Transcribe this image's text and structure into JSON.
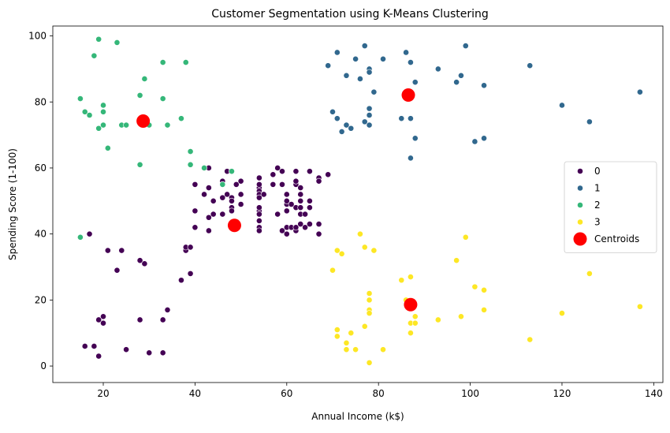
{
  "chart_data": {
    "type": "scatter",
    "title": "Customer Segmentation using K-Means Clustering",
    "xlabel": "Annual Income (k$)",
    "ylabel": "Spending Score (1-100)",
    "xlim": [
      9,
      142
    ],
    "ylim": [
      -5,
      103
    ],
    "x_ticks": [
      20,
      40,
      60,
      80,
      100,
      120,
      140
    ],
    "y_ticks": [
      0,
      20,
      40,
      60,
      80,
      100
    ],
    "grid": false,
    "legend_position": "right",
    "series": [
      {
        "name": "0",
        "color": "#440154",
        "points": [
          [
            16,
            6
          ],
          [
            17,
            40
          ],
          [
            18,
            6
          ],
          [
            19,
            3
          ],
          [
            19,
            14
          ],
          [
            20,
            15
          ],
          [
            20,
            13
          ],
          [
            21,
            35
          ],
          [
            23,
            29
          ],
          [
            24,
            35
          ],
          [
            25,
            5
          ],
          [
            28,
            14
          ],
          [
            28,
            32
          ],
          [
            29,
            31
          ],
          [
            30,
            4
          ],
          [
            33,
            4
          ],
          [
            33,
            14
          ],
          [
            34,
            17
          ],
          [
            38,
            35
          ],
          [
            38,
            36
          ],
          [
            37,
            26
          ],
          [
            39,
            28
          ],
          [
            39,
            36
          ],
          [
            40,
            55
          ],
          [
            40,
            47
          ],
          [
            40,
            42
          ],
          [
            42,
            52
          ],
          [
            42,
            60
          ],
          [
            43,
            54
          ],
          [
            43,
            60
          ],
          [
            43,
            45
          ],
          [
            43,
            41
          ],
          [
            44,
            50
          ],
          [
            44,
            46
          ],
          [
            46,
            51
          ],
          [
            46,
            46
          ],
          [
            46,
            56
          ],
          [
            46,
            55
          ],
          [
            47,
            52
          ],
          [
            47,
            59
          ],
          [
            48,
            51
          ],
          [
            48,
            59
          ],
          [
            48,
            50
          ],
          [
            48,
            48
          ],
          [
            48,
            47
          ],
          [
            48,
            42
          ],
          [
            49,
            55
          ],
          [
            49,
            42
          ],
          [
            50,
            49
          ],
          [
            50,
            56
          ],
          [
            54,
            47
          ],
          [
            54,
            54
          ],
          [
            54,
            53
          ],
          [
            54,
            48
          ],
          [
            54,
            52
          ],
          [
            54,
            42
          ],
          [
            54,
            51
          ],
          [
            54,
            55
          ],
          [
            54,
            41
          ],
          [
            54,
            44
          ],
          [
            54,
            57
          ],
          [
            54,
            46
          ],
          [
            57,
            58
          ],
          [
            57,
            55
          ],
          [
            58,
            60
          ],
          [
            58,
            46
          ],
          [
            59,
            55
          ],
          [
            59,
            41
          ],
          [
            60,
            49
          ],
          [
            60,
            40
          ],
          [
            60,
            42
          ],
          [
            60,
            52
          ],
          [
            60,
            47
          ],
          [
            60,
            50
          ],
          [
            61,
            42
          ],
          [
            61,
            49
          ],
          [
            62,
            41
          ],
          [
            62,
            48
          ],
          [
            62,
            59
          ],
          [
            62,
            55
          ],
          [
            62,
            56
          ],
          [
            62,
            42
          ],
          [
            63,
            50
          ],
          [
            63,
            46
          ],
          [
            63,
            43
          ],
          [
            63,
            48
          ],
          [
            63,
            52
          ],
          [
            63,
            54
          ],
          [
            64,
            42
          ],
          [
            64,
            46
          ],
          [
            65,
            48
          ],
          [
            65,
            50
          ],
          [
            65,
            43
          ],
          [
            65,
            59
          ],
          [
            67,
            43
          ],
          [
            67,
            57
          ],
          [
            67,
            56
          ],
          [
            67,
            40
          ],
          [
            69,
            58
          ],
          [
            59,
            59
          ],
          [
            55,
            52
          ],
          [
            50,
            52
          ]
        ]
      },
      {
        "name": "1",
        "color": "#31688e",
        "points": [
          [
            69,
            91
          ],
          [
            70,
            77
          ],
          [
            71,
            95
          ],
          [
            71,
            75
          ],
          [
            72,
            71
          ],
          [
            73,
            88
          ],
          [
            73,
            73
          ],
          [
            74,
            72
          ],
          [
            75,
            93
          ],
          [
            76,
            87
          ],
          [
            77,
            97
          ],
          [
            77,
            74
          ],
          [
            78,
            90
          ],
          [
            78,
            76
          ],
          [
            78,
            89
          ],
          [
            78,
            78
          ],
          [
            78,
            73
          ],
          [
            79,
            83
          ],
          [
            81,
            93
          ],
          [
            85,
            75
          ],
          [
            86,
            95
          ],
          [
            87,
            63
          ],
          [
            87,
            75
          ],
          [
            87,
            92
          ],
          [
            88,
            86
          ],
          [
            88,
            69
          ],
          [
            93,
            90
          ],
          [
            97,
            86
          ],
          [
            98,
            88
          ],
          [
            99,
            97
          ],
          [
            101,
            68
          ],
          [
            103,
            85
          ],
          [
            103,
            69
          ],
          [
            113,
            91
          ],
          [
            120,
            79
          ],
          [
            126,
            74
          ],
          [
            137,
            83
          ]
        ]
      },
      {
        "name": "2",
        "color": "#35b779",
        "points": [
          [
            15,
            39
          ],
          [
            15,
            81
          ],
          [
            16,
            77
          ],
          [
            17,
            76
          ],
          [
            18,
            94
          ],
          [
            19,
            72
          ],
          [
            19,
            99
          ],
          [
            20,
            77
          ],
          [
            20,
            79
          ],
          [
            20,
            73
          ],
          [
            21,
            66
          ],
          [
            23,
            98
          ],
          [
            24,
            73
          ],
          [
            25,
            73
          ],
          [
            28,
            82
          ],
          [
            28,
            61
          ],
          [
            29,
            87
          ],
          [
            30,
            73
          ],
          [
            33,
            92
          ],
          [
            33,
            81
          ],
          [
            34,
            73
          ],
          [
            37,
            75
          ],
          [
            38,
            92
          ],
          [
            39,
            65
          ],
          [
            39,
            61
          ],
          [
            42,
            60
          ],
          [
            46,
            55
          ],
          [
            48,
            59
          ]
        ]
      },
      {
        "name": "3",
        "color": "#fde725",
        "points": [
          [
            70,
            29
          ],
          [
            71,
            35
          ],
          [
            71,
            11
          ],
          [
            71,
            9
          ],
          [
            72,
            34
          ],
          [
            73,
            5
          ],
          [
            73,
            7
          ],
          [
            74,
            10
          ],
          [
            75,
            5
          ],
          [
            76,
            40
          ],
          [
            77,
            12
          ],
          [
            77,
            36
          ],
          [
            78,
            22
          ],
          [
            78,
            17
          ],
          [
            78,
            20
          ],
          [
            78,
            16
          ],
          [
            78,
            1
          ],
          [
            79,
            35
          ],
          [
            81,
            5
          ],
          [
            85,
            26
          ],
          [
            86,
            20
          ],
          [
            87,
            27
          ],
          [
            87,
            13
          ],
          [
            87,
            10
          ],
          [
            88,
            13
          ],
          [
            88,
            15
          ],
          [
            93,
            14
          ],
          [
            97,
            32
          ],
          [
            98,
            15
          ],
          [
            99,
            39
          ],
          [
            101,
            24
          ],
          [
            103,
            17
          ],
          [
            103,
            23
          ],
          [
            113,
            8
          ],
          [
            120,
            16
          ],
          [
            126,
            28
          ],
          [
            137,
            18
          ]
        ]
      }
    ],
    "centroids": {
      "name": "Centroids",
      "color": "#ff0000",
      "points": [
        [
          28.7,
          74.2
        ],
        [
          86.5,
          82.1
        ],
        [
          48.6,
          42.6
        ],
        [
          87.0,
          18.6
        ]
      ]
    }
  }
}
